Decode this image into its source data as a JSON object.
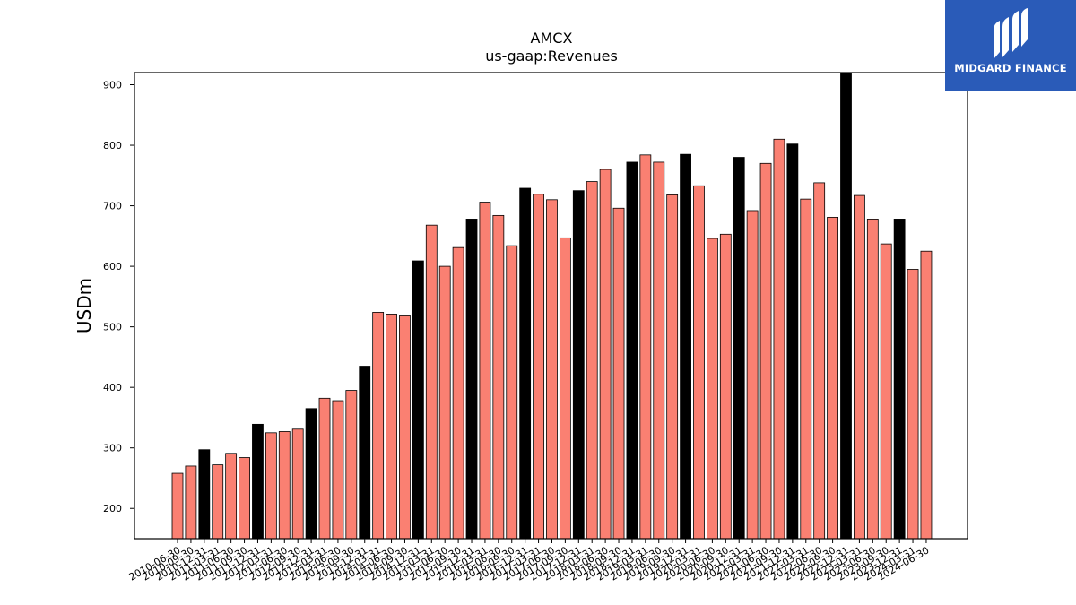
{
  "brand": {
    "name": "MIDGARD FINANCE",
    "logo_color": "#2a5bb8"
  },
  "chart_data": {
    "type": "bar",
    "title": "AMCX",
    "subtitle": "us-gaap:Revenues",
    "xlabel": "",
    "ylabel": "USDm",
    "ylim": [
      150,
      920
    ],
    "yticks": [
      200,
      300,
      400,
      500,
      600,
      700,
      800,
      900
    ],
    "grid": false,
    "colors": {
      "default": "#fa8072",
      "highlight": "#000000",
      "edge": "#000000"
    },
    "categories": [
      "2010-06-30",
      "2010-09-30",
      "2010-12-31",
      "2011-03-31",
      "2011-06-30",
      "2011-09-30",
      "2011-12-31",
      "2012-03-31",
      "2012-06-30",
      "2012-09-30",
      "2012-12-31",
      "2013-03-31",
      "2013-06-30",
      "2013-09-30",
      "2013-12-31",
      "2014-03-31",
      "2014-06-30",
      "2014-09-30",
      "2014-12-31",
      "2015-03-31",
      "2015-06-30",
      "2015-09-30",
      "2015-12-31",
      "2016-03-31",
      "2016-06-30",
      "2016-09-30",
      "2016-12-31",
      "2017-03-31",
      "2017-06-30",
      "2017-09-30",
      "2017-12-31",
      "2018-03-31",
      "2018-06-30",
      "2018-09-30",
      "2018-12-31",
      "2019-03-31",
      "2019-06-30",
      "2019-09-30",
      "2019-12-31",
      "2020-03-31",
      "2020-06-30",
      "2020-09-30",
      "2020-12-31",
      "2021-03-31",
      "2021-06-30",
      "2021-09-30",
      "2021-12-31",
      "2022-03-31",
      "2022-06-30",
      "2022-09-30",
      "2022-12-31",
      "2023-03-31",
      "2023-06-30",
      "2023-09-30",
      "2023-12-31",
      "2024-03-31",
      "2024-06-30"
    ],
    "values": [
      258,
      270,
      297,
      272,
      291,
      284,
      339,
      325,
      327,
      331,
      365,
      382,
      378,
      395,
      435,
      524,
      521,
      518,
      609,
      668,
      600,
      631,
      678,
      706,
      684,
      634,
      729,
      719,
      710,
      647,
      725,
      740,
      760,
      696,
      772,
      784,
      772,
      718,
      785,
      733,
      646,
      653,
      780,
      692,
      770,
      810,
      802,
      711,
      738,
      681,
      922,
      717,
      678,
      637,
      678,
      595,
      625
    ]
  }
}
